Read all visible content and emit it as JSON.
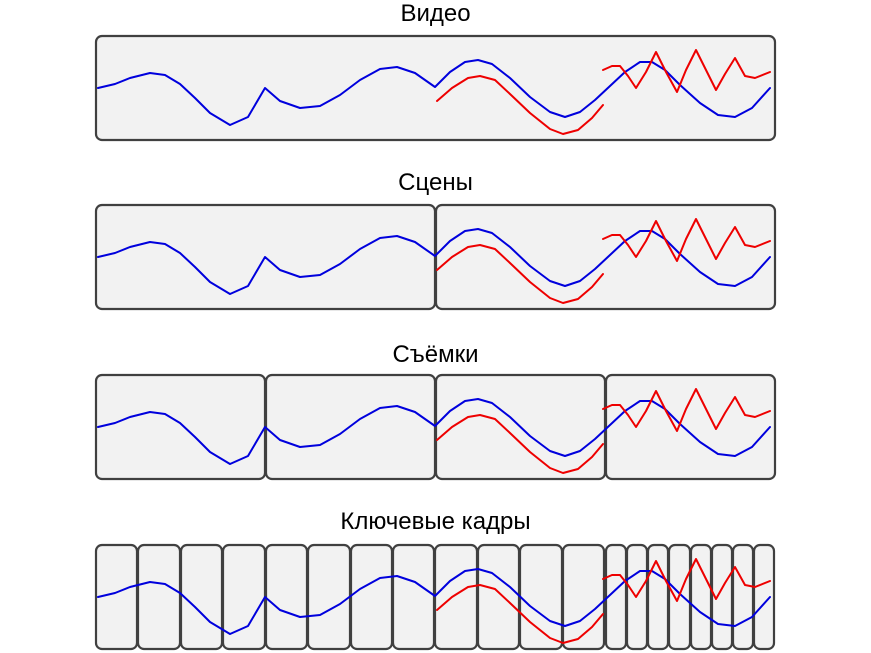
{
  "colors": {
    "background": "#ffffff",
    "segment_fill": "#f2f2f2",
    "segment_border": "#404040",
    "primary_wave": "#0000dd",
    "secondary_wave": "#ee0000"
  },
  "panels": [
    {
      "id": "video",
      "title": "Видео",
      "segment_count": 1
    },
    {
      "id": "scenes",
      "title": "Сцены",
      "segment_count": 2
    },
    {
      "id": "shots",
      "title": "Съёмки",
      "segment_count": 4
    },
    {
      "id": "keyframes",
      "title": "Ключевые кадры",
      "segment_count": 20
    }
  ]
}
